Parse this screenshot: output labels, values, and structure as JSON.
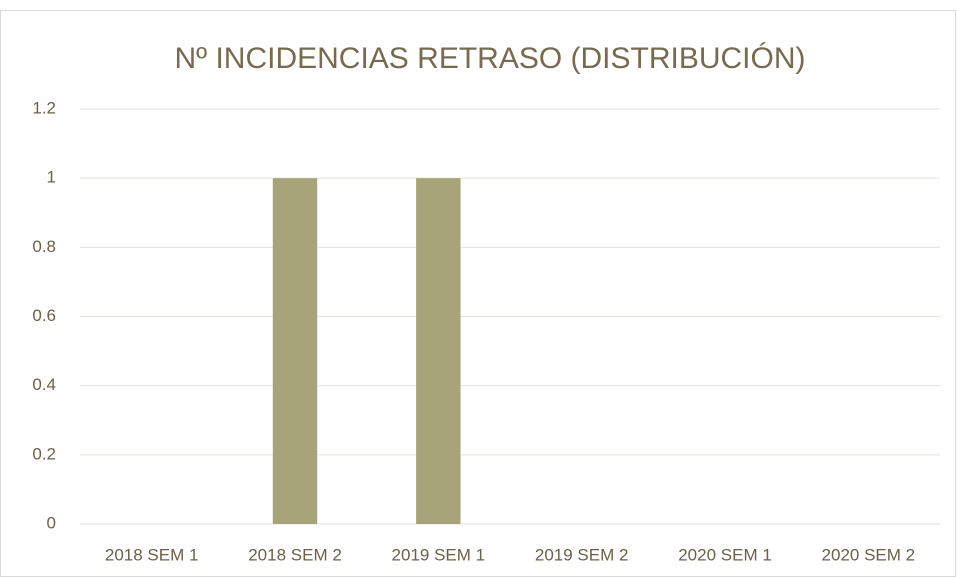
{
  "chart_data": {
    "type": "bar",
    "title": "Nº INCIDENCIAS RETRASO (DISTRIBUCIÓN)",
    "categories": [
      "2018 SEM 1",
      "2018 SEM 2",
      "2019 SEM 1",
      "2019 SEM 2",
      "2020 SEM 1",
      "2020 SEM 2"
    ],
    "values": [
      0,
      1,
      1,
      0,
      0,
      0
    ],
    "color": "#a8a47a",
    "ylim": [
      0,
      1.2
    ],
    "yticks": [
      0,
      0.2,
      0.4,
      0.6,
      0.8,
      1,
      1.2
    ],
    "grid": true
  }
}
